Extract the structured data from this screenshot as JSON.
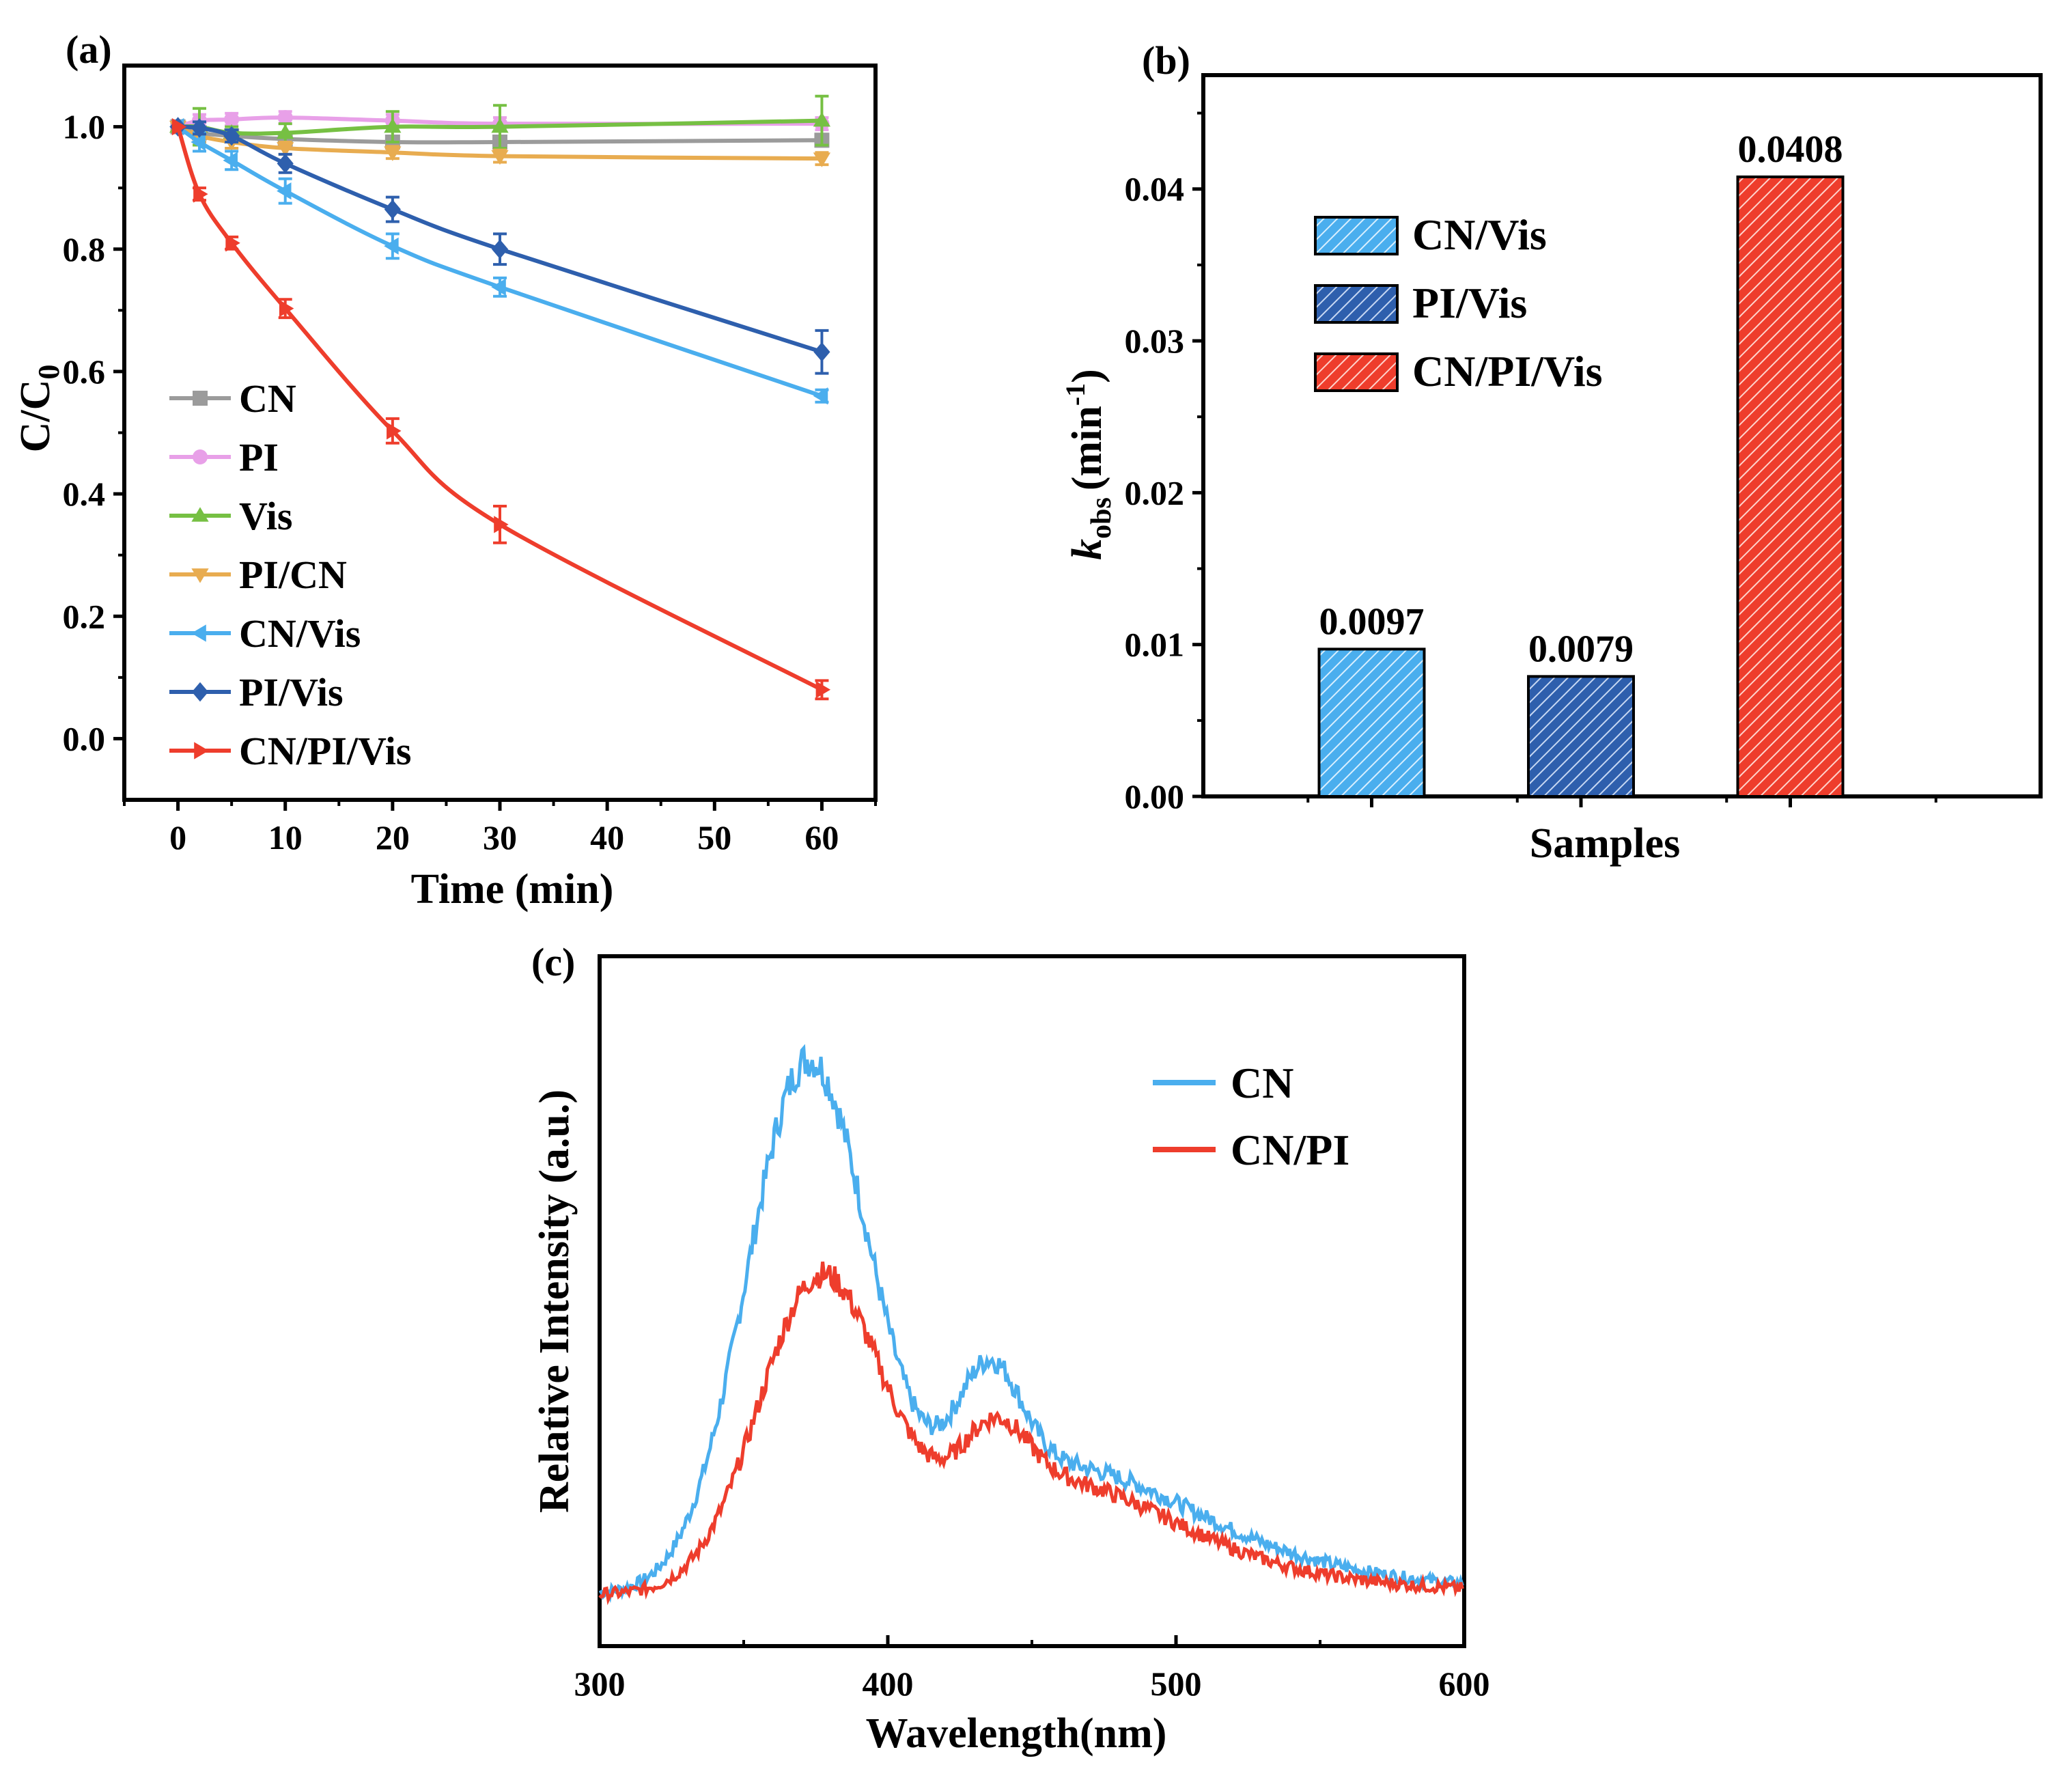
{
  "chart_data": [
    {
      "panel": "(a)",
      "type": "line",
      "xlabel": "Time (min)",
      "ylabel": "C/C",
      "ylabel_sub": "0",
      "xlim": [
        -5,
        65
      ],
      "ylim": [
        -0.1,
        1.1
      ],
      "xticks": [
        "0",
        "10",
        "20",
        "30",
        "40",
        "50",
        "60"
      ],
      "yticks": [
        "0.0",
        "0.2",
        "0.4",
        "0.6",
        "0.8",
        "1.0"
      ],
      "x": [
        0,
        2,
        5,
        10,
        20,
        30,
        60
      ],
      "series": [
        {
          "name": "CN",
          "color": "#9b9b9b",
          "marker": "square",
          "values": [
            1.0,
            0.99,
            0.985,
            0.98,
            0.975,
            0.975,
            0.978
          ],
          "errors": [
            0,
            0.01,
            0.01,
            0.01,
            0.01,
            0.01,
            0.01
          ]
        },
        {
          "name": "PI",
          "color": "#e8a0e8",
          "marker": "circle",
          "values": [
            1.0,
            1.01,
            1.012,
            1.015,
            1.01,
            1.005,
            1.005
          ],
          "errors": [
            0,
            0.01,
            0.01,
            0.01,
            0.01,
            0.01,
            0.01
          ]
        },
        {
          "name": "Vis",
          "color": "#76c043",
          "marker": "triangle-up",
          "values": [
            1.0,
            1.0,
            0.99,
            0.99,
            1.0,
            1.0,
            1.01
          ],
          "errors": [
            0,
            0.03,
            0.01,
            0.015,
            0.025,
            0.035,
            0.04
          ]
        },
        {
          "name": "PI/CN",
          "color": "#e8ac50",
          "marker": "triangle-down",
          "values": [
            1.0,
            0.985,
            0.975,
            0.965,
            0.958,
            0.952,
            0.948
          ],
          "errors": [
            0,
            0.01,
            0.01,
            0.01,
            0.01,
            0.01,
            0.01
          ]
        },
        {
          "name": "CN/Vis",
          "color": "#4aaeee",
          "marker": "triangle-left",
          "values": [
            1.0,
            0.975,
            0.945,
            0.895,
            0.805,
            0.738,
            0.56
          ],
          "errors": [
            0,
            0.015,
            0.015,
            0.02,
            0.02,
            0.015,
            0.01
          ]
        },
        {
          "name": "PI/Vis",
          "color": "#2e5fad",
          "marker": "diamond",
          "values": [
            1.0,
            0.998,
            0.985,
            0.94,
            0.865,
            0.8,
            0.632
          ],
          "errors": [
            0,
            0.01,
            0.01,
            0.015,
            0.02,
            0.025,
            0.035
          ]
        },
        {
          "name": "CN/PI/Vis",
          "color": "#ee3d2c",
          "marker": "triangle-right",
          "values": [
            1.0,
            0.89,
            0.81,
            0.703,
            0.503,
            0.35,
            0.08
          ],
          "errors": [
            0,
            0.01,
            0.01,
            0.015,
            0.02,
            0.03,
            0.015
          ]
        }
      ]
    },
    {
      "panel": "(b)",
      "type": "bar",
      "xlabel": "Samples",
      "ylabel": "k",
      "ylabel_sub": "obs",
      "ylabel_unit": "(min",
      "ylabel_sup": "-1",
      "ylabel_close": ")",
      "ylim": [
        0,
        0.0475
      ],
      "yticks": [
        "0.00",
        "0.01",
        "0.02",
        "0.03",
        "0.04"
      ],
      "categories": [
        "CN/Vis",
        "PI/Vis",
        "CN/PI/Vis"
      ],
      "values": [
        0.0097,
        0.0079,
        0.0408
      ],
      "value_labels": [
        "0.0097",
        "0.0079",
        "0.0408"
      ],
      "colors": [
        "#4aaeee",
        "#2e5fad",
        "#ee3d2c"
      ]
    },
    {
      "panel": "(c)",
      "type": "line",
      "xlabel": "Wavelength(nm)",
      "ylabel": "Relative Intensity (a.u.)",
      "xlim": [
        300,
        600
      ],
      "xticks": [
        "300",
        "400",
        "500",
        "600"
      ],
      "series": [
        {
          "name": "CN",
          "color": "#4aaeee",
          "peak_wavelength": 372,
          "peak_intensity": 1.0,
          "shoulder_wavelength": 435
        },
        {
          "name": "CN/PI",
          "color": "#ee3d2c",
          "peak_wavelength": 376,
          "peak_intensity": 0.58,
          "shoulder_wavelength": 437
        }
      ]
    }
  ]
}
